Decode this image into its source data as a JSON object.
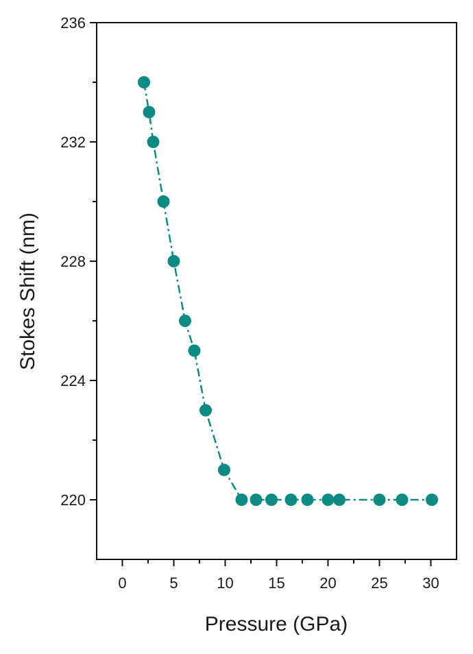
{
  "colors": {
    "series": "#0c8a84",
    "axis": "#111111"
  },
  "chart_data": {
    "type": "scatter",
    "title": "",
    "xlabel": "Pressure (GPa)",
    "ylabel": "Stokes Shift (nm)",
    "xlim": [
      -2.5,
      32.5
    ],
    "ylim": [
      218,
      236
    ],
    "x_ticks": [
      0,
      5,
      10,
      15,
      20,
      25,
      30
    ],
    "x_tick_labels": [
      "0",
      "5",
      "10",
      "15",
      "20",
      "25",
      "30"
    ],
    "y_ticks": [
      220,
      224,
      228,
      232,
      236
    ],
    "y_tick_labels": [
      "220",
      "224",
      "228",
      "232",
      "236"
    ],
    "grid": false,
    "legend": "none",
    "line_style": "dash-dot",
    "series": [
      {
        "x": [
          2.1,
          2.6,
          3.0,
          4.0,
          5.0,
          6.1,
          7.0,
          8.1,
          9.9,
          11.6,
          13.0,
          14.5,
          16.4,
          18.0,
          20.0,
          21.1,
          25.0,
          27.2,
          30.1
        ],
        "y": [
          234,
          233,
          232,
          230,
          228,
          226,
          225,
          223,
          221,
          220,
          220,
          220,
          220,
          220,
          220,
          220,
          220,
          220,
          220
        ]
      }
    ]
  }
}
